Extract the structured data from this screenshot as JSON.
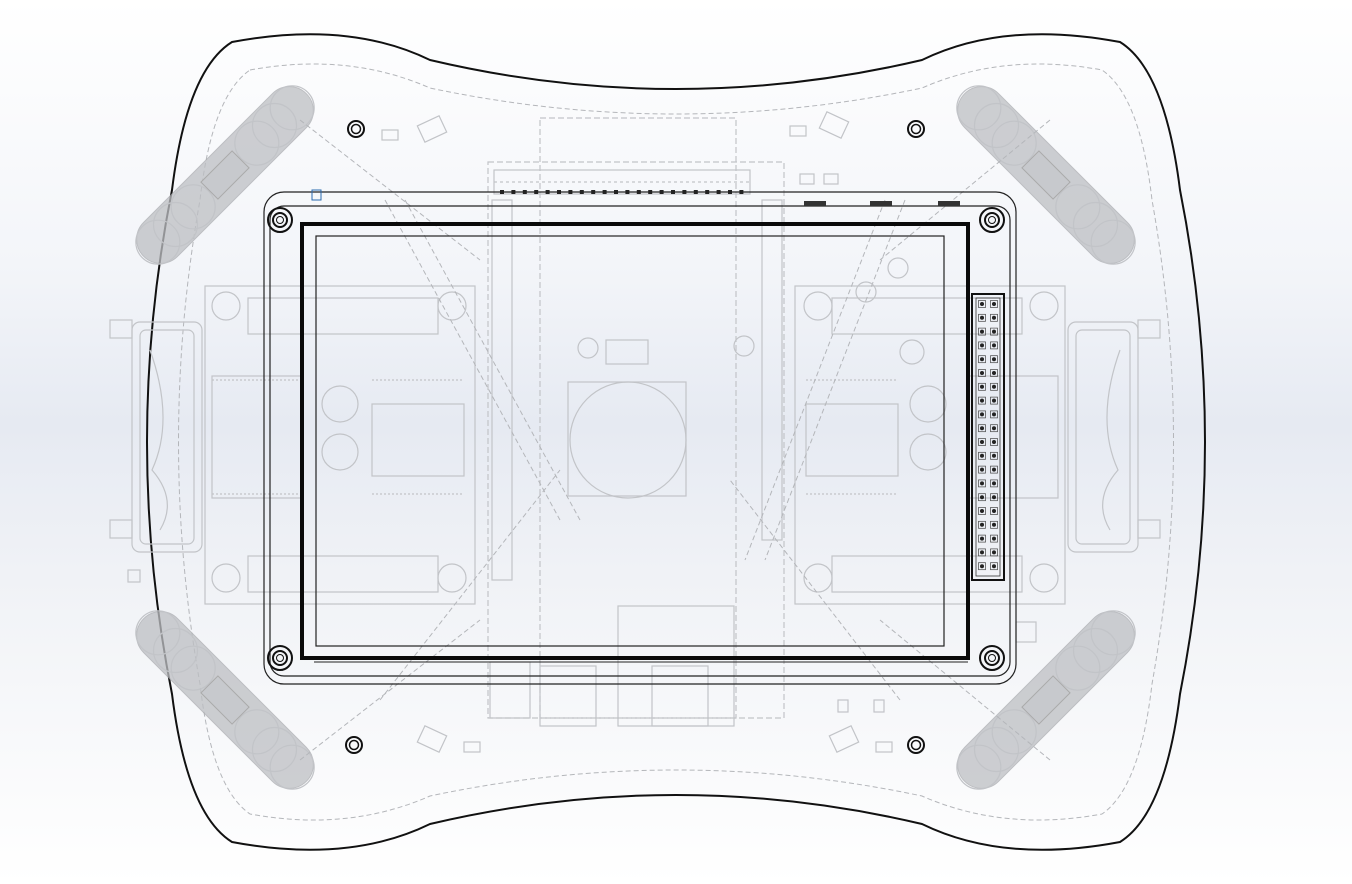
{
  "view": {
    "background_top": "#ffffff",
    "background_mid": "#e6eaf2",
    "edge_color": "#111111",
    "hidden_line_color": "#b4b6ba"
  },
  "parts": {
    "base_plate": "robot-chassis-plate",
    "display": "tft-display-module",
    "header": "pin-header-2x20",
    "wheels": [
      "omni-wheel",
      "omni-wheel",
      "omni-wheel",
      "omni-wheel"
    ],
    "motor_drivers": [
      "motor-driver-board",
      "motor-driver-board"
    ],
    "controller": "microcontroller-board"
  }
}
